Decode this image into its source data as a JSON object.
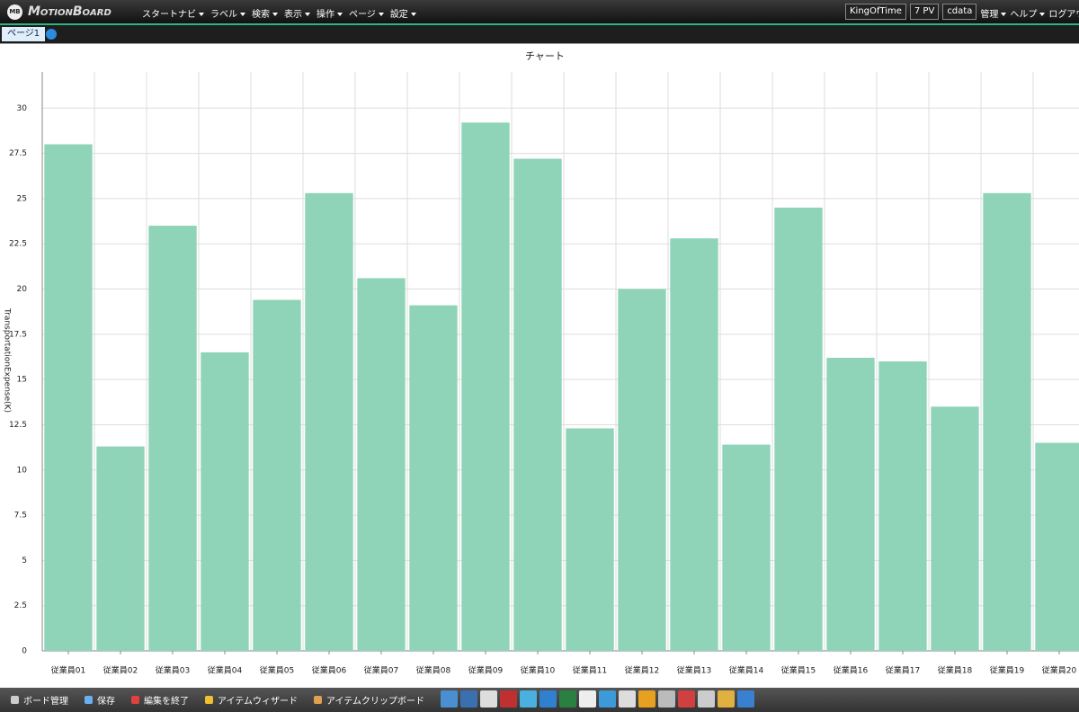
{
  "header": {
    "badge": "MB",
    "logo": "MotionBoard",
    "menu": [
      "スタートナビ",
      "ラベル",
      "検索",
      "表示",
      "操作",
      "ページ",
      "設定"
    ],
    "buttons": [
      "KingOfTime",
      "7 PV",
      "cdata"
    ],
    "right_menu": [
      "管理",
      "ヘルプ",
      "ログアウト"
    ]
  },
  "tabs": [
    "ページ1"
  ],
  "chart_data": {
    "type": "bar",
    "title": "チャート",
    "y_label": "TransportationExpense(K)",
    "categories": [
      "従業員01",
      "従業員02",
      "従業員03",
      "従業員04",
      "従業員05",
      "従業員06",
      "従業員07",
      "従業員08",
      "従業員09",
      "従業員10",
      "従業員11",
      "従業員12",
      "従業員13",
      "従業員14",
      "従業員15",
      "従業員16",
      "従業員17",
      "従業員18",
      "従業員19",
      "従業員20"
    ],
    "values": [
      28,
      11.3,
      23.5,
      16.5,
      19.4,
      25.3,
      20.6,
      19.1,
      29.2,
      27.2,
      12.3,
      20,
      22.8,
      11.4,
      24.5,
      16.2,
      16,
      13.5,
      25.3,
      11.5
    ],
    "color": "#8fd4b9",
    "ylim": [
      0,
      32
    ],
    "yticks": [
      0,
      2.5,
      5,
      7.5,
      10,
      12.5,
      15,
      17.5,
      20,
      22.5,
      25,
      27.5,
      30
    ],
    "grid": true
  },
  "toolbar": [
    "ボード管理",
    "保存",
    "編集を終了",
    "アイテムウィザード",
    "アイテムクリップボード"
  ]
}
